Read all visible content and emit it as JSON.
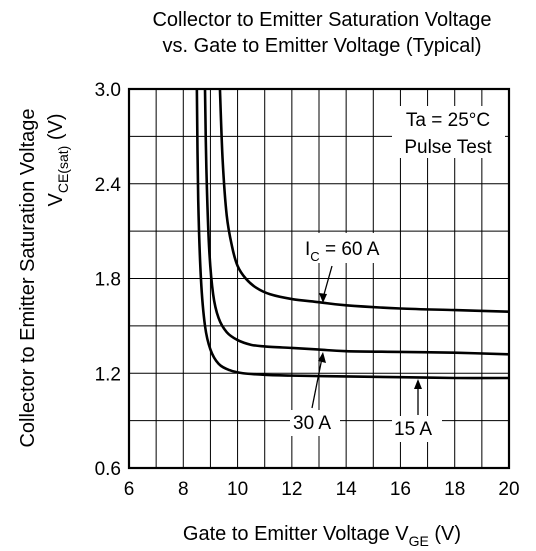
{
  "chart_data": {
    "type": "line",
    "title": {
      "line1": "Collector to Emitter Saturation Voltage",
      "line2": "vs. Gate to Emitter Voltage (Typical)"
    },
    "xlabel": {
      "main": "Gate to Emitter Voltage   V",
      "sub": "GE",
      "unit": " (V)"
    },
    "ylabel": {
      "line1": "Collector to Emitter Saturation Voltage",
      "main": "V",
      "sub": "CE(sat)",
      "unit": "  (V)"
    },
    "xlim": [
      6,
      20
    ],
    "ylim": [
      0.6,
      3.0
    ],
    "x_ticks": [
      "6",
      "8",
      "10",
      "12",
      "14",
      "16",
      "18",
      "20"
    ],
    "y_ticks": [
      "0.6",
      "1.2",
      "1.8",
      "2.4",
      "3.0"
    ],
    "grid": true,
    "conditions": {
      "line1": "Ta = 25°C",
      "line2": "Pulse Test"
    },
    "series": [
      {
        "name": "I_C = 60 A",
        "label_main": "I",
        "label_sub": "C",
        "label_rest": " = 60 A",
        "x": [
          9.35,
          9.45,
          9.6,
          9.8,
          10.0,
          10.3,
          10.7,
          11.2,
          12.0,
          13.0,
          14.0,
          16.0,
          18.0,
          20.0
        ],
        "y": [
          3.0,
          2.55,
          2.2,
          2.0,
          1.88,
          1.8,
          1.74,
          1.7,
          1.67,
          1.65,
          1.63,
          1.61,
          1.6,
          1.59
        ]
      },
      {
        "name": "30 A",
        "label": "30 A",
        "x": [
          8.8,
          8.85,
          8.95,
          9.1,
          9.3,
          9.6,
          10.0,
          10.5,
          11.0,
          12.0,
          13.0,
          14.0,
          16.0,
          18.0,
          20.0
        ],
        "y": [
          3.0,
          2.5,
          2.0,
          1.7,
          1.55,
          1.46,
          1.41,
          1.38,
          1.37,
          1.36,
          1.35,
          1.34,
          1.335,
          1.33,
          1.32
        ]
      },
      {
        "name": "15 A",
        "label": "15 A",
        "x": [
          8.5,
          8.55,
          8.65,
          8.8,
          9.0,
          9.3,
          9.7,
          10.2,
          11.0,
          12.0,
          14.0,
          16.0,
          18.0,
          20.0
        ],
        "y": [
          3.0,
          2.3,
          1.8,
          1.5,
          1.35,
          1.26,
          1.22,
          1.2,
          1.19,
          1.185,
          1.18,
          1.175,
          1.17,
          1.17
        ]
      }
    ]
  }
}
